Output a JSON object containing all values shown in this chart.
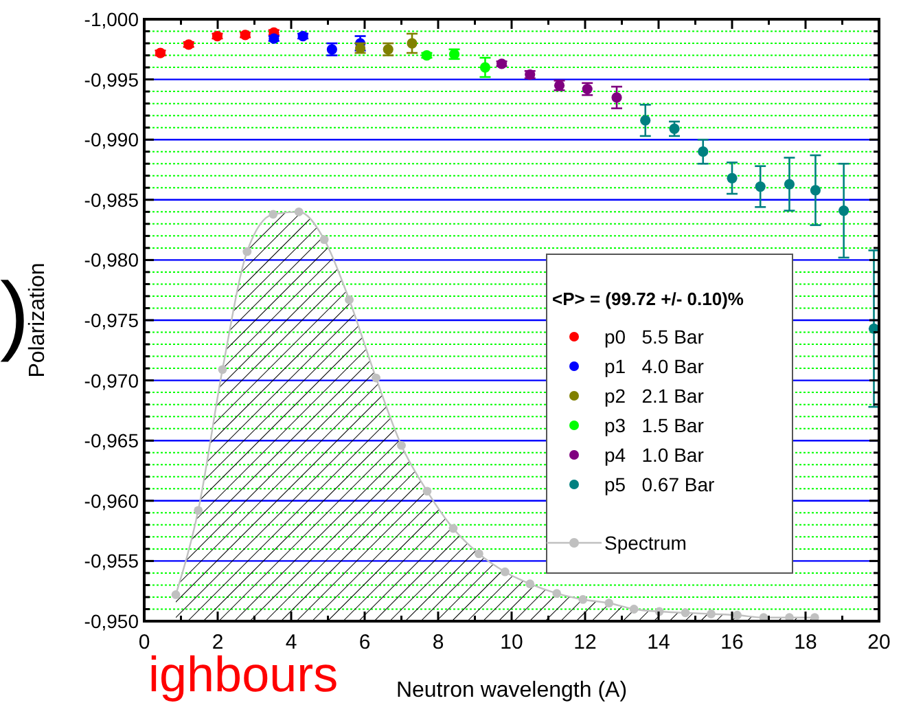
{
  "chart_data": {
    "type": "scatter",
    "xlabel": "Neutron wavelength (A)",
    "ylabel": "Polarization",
    "legend_title": "<P> = (99.72 +/- 0.10)%",
    "legend": "right",
    "grid": "y",
    "marker": "circle",
    "xlim": [
      0,
      20
    ],
    "xticks": [
      0,
      {
        "value": 1,
        "label": null
      },
      2,
      {
        "value": 3,
        "label": null
      },
      4,
      {
        "value": 5,
        "label": null
      },
      6,
      {
        "value": 7,
        "label": null
      },
      8,
      {
        "value": 9,
        "label": null
      },
      10,
      {
        "value": 11,
        "label": null
      },
      12,
      {
        "value": 13,
        "label": null
      },
      14,
      {
        "value": 15,
        "label": null
      },
      16,
      {
        "value": 17,
        "label": null
      },
      18,
      {
        "value": 19,
        "label": null
      },
      20
    ],
    "ylim": [
      -0.95,
      -1.0
    ],
    "yticks": [
      {
        "value": -1.0,
        "label": "-1,000"
      },
      {
        "value": -0.999,
        "label": null
      },
      {
        "value": -0.998,
        "label": null
      },
      {
        "value": -0.997,
        "label": null
      },
      {
        "value": -0.996,
        "label": null
      },
      {
        "value": -0.995,
        "label": "-0,995"
      },
      {
        "value": -0.994,
        "label": null
      },
      {
        "value": -0.993,
        "label": null
      },
      {
        "value": -0.992,
        "label": null
      },
      {
        "value": -0.991,
        "label": null
      },
      {
        "value": -0.99,
        "label": "-0,990"
      },
      {
        "value": -0.989,
        "label": null
      },
      {
        "value": -0.988,
        "label": null
      },
      {
        "value": -0.987,
        "label": null
      },
      {
        "value": -0.986,
        "label": null
      },
      {
        "value": -0.985,
        "label": "-0,985"
      },
      {
        "value": -0.984,
        "label": null
      },
      {
        "value": -0.983,
        "label": null
      },
      {
        "value": -0.982,
        "label": null
      },
      {
        "value": -0.981,
        "label": null
      },
      {
        "value": -0.98,
        "label": "-0,980"
      },
      {
        "value": -0.979,
        "label": null
      },
      {
        "value": -0.978,
        "label": null
      },
      {
        "value": -0.977,
        "label": null
      },
      {
        "value": -0.976,
        "label": null
      },
      {
        "value": -0.975,
        "label": "-0,975"
      },
      {
        "value": -0.974,
        "label": null
      },
      {
        "value": -0.973,
        "label": null
      },
      {
        "value": -0.972,
        "label": null
      },
      {
        "value": -0.971,
        "label": null
      },
      {
        "value": -0.97,
        "label": "-0,970"
      },
      {
        "value": -0.969,
        "label": null
      },
      {
        "value": -0.968,
        "label": null
      },
      {
        "value": -0.967,
        "label": null
      },
      {
        "value": -0.966,
        "label": null
      },
      {
        "value": -0.965,
        "label": "-0,965"
      },
      {
        "value": -0.964,
        "label": null
      },
      {
        "value": -0.963,
        "label": null
      },
      {
        "value": -0.962,
        "label": null
      },
      {
        "value": -0.961,
        "label": null
      },
      {
        "value": -0.96,
        "label": "-0,960"
      },
      {
        "value": -0.959,
        "label": null
      },
      {
        "value": -0.958,
        "label": null
      },
      {
        "value": -0.957,
        "label": null
      },
      {
        "value": -0.956,
        "label": null
      },
      {
        "value": -0.955,
        "label": "-0,955"
      },
      {
        "value": -0.954,
        "label": null
      },
      {
        "value": -0.953,
        "label": null
      },
      {
        "value": -0.952,
        "label": null
      },
      {
        "value": -0.951,
        "label": null
      },
      {
        "value": -0.95,
        "label": "-0,950"
      }
    ],
    "series": [
      {
        "name": "Spectrum",
        "type": "area",
        "color": "#c0c0c0",
        "x": [
          0.86,
          1.47,
          2.13,
          2.8,
          3.51,
          4.21,
          4.9,
          5.58,
          6.31,
          7.0,
          7.7,
          8.41,
          9.11,
          9.82,
          10.5,
          11.23,
          11.94,
          12.65,
          13.33,
          14.02,
          14.73,
          15.43,
          16.14,
          16.86,
          17.56,
          18.25
        ],
        "values": [
          -0.9522,
          -0.9592,
          -0.9709,
          -0.9807,
          -0.9838,
          -0.984,
          -0.9817,
          -0.9767,
          -0.9702,
          -0.9646,
          -0.9608,
          -0.9577,
          -0.9556,
          -0.9541,
          -0.9531,
          -0.9523,
          -0.9518,
          -0.9515,
          -0.951,
          -0.9508,
          -0.9507,
          -0.9506,
          -0.9505,
          -0.9503,
          -0.9503,
          -0.9503
        ]
      },
      {
        "name": "p0   5.5 Bar",
        "color": "#ff0000",
        "x": [
          0.44,
          1.21,
          1.99,
          2.75,
          3.53
        ],
        "values": [
          -0.9972,
          -0.9979,
          -0.9986,
          -0.9987,
          -0.9989
        ],
        "errors": [
          0.0002,
          0.0002,
          0.0002,
          0.0002,
          0.0002
        ]
      },
      {
        "name": "p1   4.0 Bar",
        "color": "#0000ff",
        "x": [
          3.53,
          4.32,
          5.11,
          5.88
        ],
        "values": [
          -0.9984,
          -0.9986,
          -0.9975,
          -0.998
        ],
        "errors": [
          0.0002,
          0.0002,
          0.0005,
          0.0006
        ]
      },
      {
        "name": "p2   2.1 Bar",
        "color": "#808000",
        "x": [
          5.88,
          6.64,
          7.29
        ],
        "values": [
          -0.9976,
          -0.9975,
          -0.998
        ],
        "errors": [
          0.0004,
          0.0005,
          0.0008
        ]
      },
      {
        "name": "p3   1.5 Bar",
        "color": "#00ff00",
        "x": [
          7.69,
          8.44,
          9.28
        ],
        "values": [
          -0.997,
          -0.9971,
          -0.996
        ],
        "errors": [
          0.0002,
          0.0004,
          0.0008
        ]
      },
      {
        "name": "p4   1.0 Bar",
        "color": "#800080",
        "x": [
          9.73,
          10.5,
          11.3,
          12.06,
          12.86
        ],
        "values": [
          -0.9963,
          -0.9954,
          -0.9945,
          -0.9942,
          -0.9935
        ],
        "errors": [
          0.0002,
          0.0003,
          0.0004,
          0.0005,
          0.0009
        ]
      },
      {
        "name": "p5   0.67 Bar",
        "color": "#008080",
        "x": [
          13.64,
          14.43,
          15.21,
          16.0,
          16.77,
          17.56,
          18.27,
          19.04,
          19.86
        ],
        "values": [
          -0.9916,
          -0.9909,
          -0.989,
          -0.9868,
          -0.9861,
          -0.9863,
          -0.9858,
          -0.9841,
          -0.9743
        ],
        "errors": [
          0.0013,
          0.0006,
          0.001,
          0.0013,
          0.0017,
          0.0022,
          0.0029,
          0.0039,
          0.0065
        ]
      }
    ],
    "annotations": [
      "ighbours",
      ")"
    ]
  }
}
